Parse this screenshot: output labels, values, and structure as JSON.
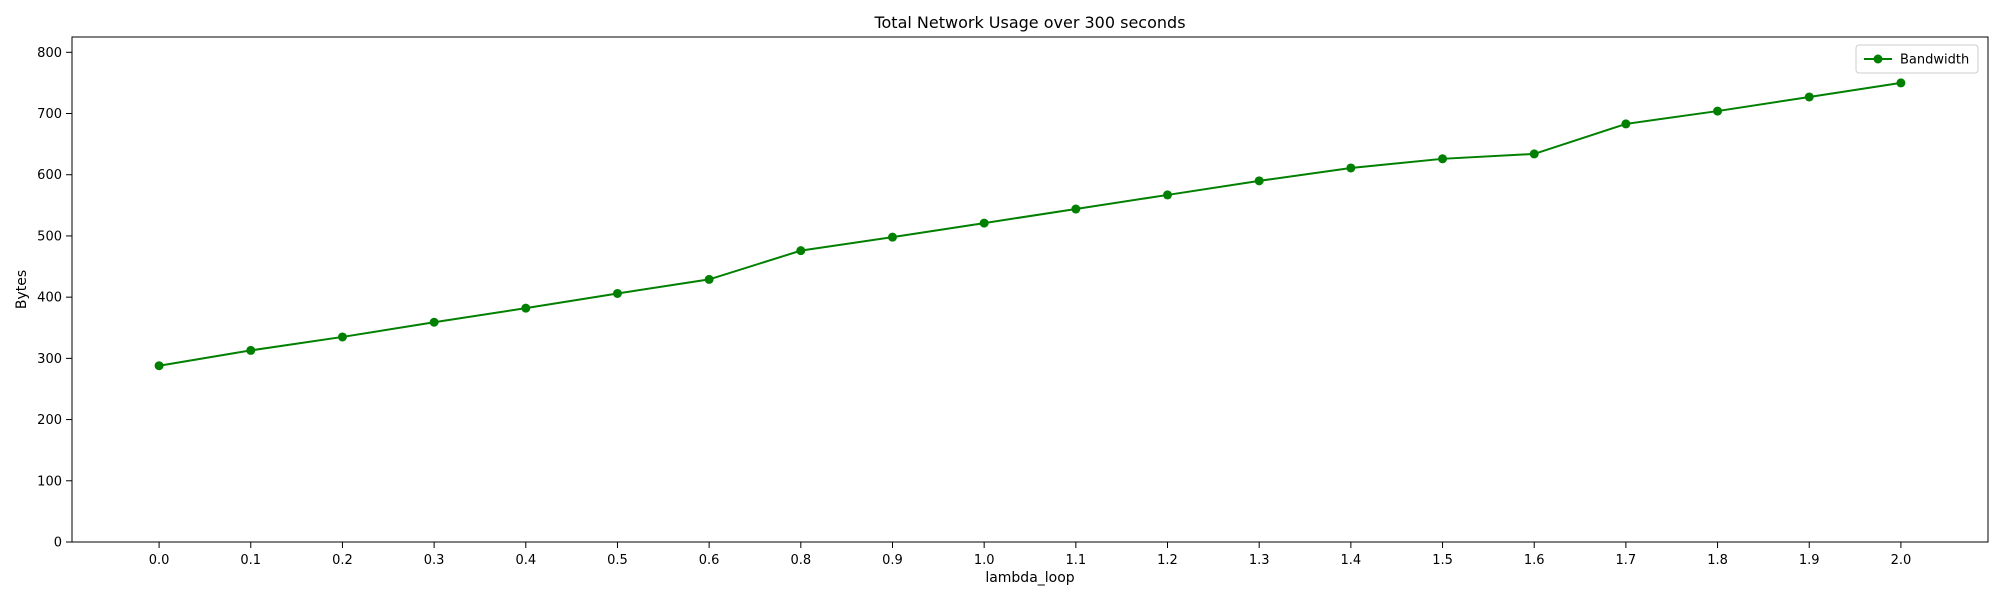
{
  "chart_data": {
    "type": "line",
    "title": "Total Network Usage over 300 seconds",
    "xlabel": "lambda_loop",
    "ylabel": "Bytes",
    "categories": [
      "0.0",
      "0.1",
      "0.2",
      "0.3",
      "0.4",
      "0.5",
      "0.6",
      "0.8",
      "0.9",
      "1.0",
      "1.1",
      "1.2",
      "1.3",
      "1.4",
      "1.5",
      "1.6",
      "1.7",
      "1.8",
      "1.9",
      "2.0"
    ],
    "series": [
      {
        "name": "Bandwidth",
        "color": "#008000",
        "marker": "circle",
        "values": [
          288,
          313,
          335,
          359,
          382,
          406,
          429,
          476,
          498,
          521,
          544,
          567,
          590,
          611,
          626,
          634,
          683,
          704,
          727,
          750
        ]
      }
    ],
    "ylim": [
      0,
      825
    ],
    "yticks": [
      0,
      100,
      200,
      300,
      400,
      500,
      600,
      700,
      800
    ],
    "grid": false,
    "legend_position": "top-right"
  }
}
